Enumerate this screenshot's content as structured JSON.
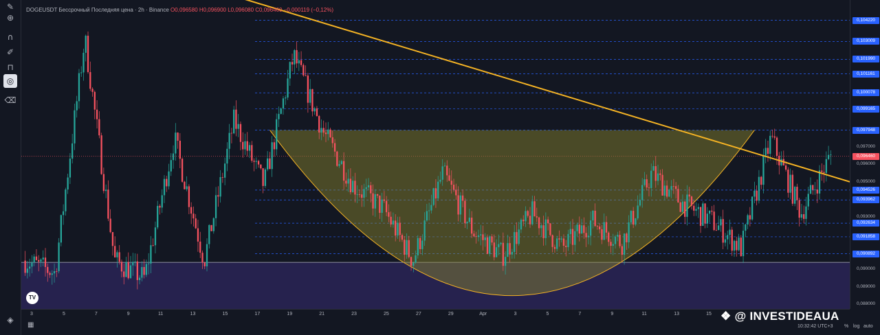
{
  "legend": {
    "title": "DOGEUSDT Бессрочный Последняя цена · 2h · Binance",
    "ohlc": "O0,096580 H0,096900 L0,096080 C0,096460 −0,000119 (−0,12%)"
  },
  "toolbar": {
    "icons": [
      "pencil-icon",
      "zoom-icon",
      "magnet-icon",
      "brush-lock-icon",
      "lock-icon",
      "hide-drawings-icon",
      "trash-icon",
      "layers-icon"
    ]
  },
  "price_axis": {
    "labels": [
      {
        "text": "0,104220",
        "style": "blue",
        "price": 0.10422
      },
      {
        "text": "0,103009",
        "style": "blue",
        "price": 0.103009
      },
      {
        "text": "0,101990",
        "style": "blue",
        "price": 0.10199
      },
      {
        "text": "0,101161",
        "style": "blue",
        "price": 0.101161
      },
      {
        "text": "0,100078",
        "style": "blue",
        "price": 0.100078
      },
      {
        "text": "0,099165",
        "style": "blue",
        "price": 0.099165
      },
      {
        "text": "0,097948",
        "style": "blue",
        "price": 0.097948
      },
      {
        "text": "0,097000",
        "style": "plain",
        "price": 0.097
      },
      {
        "text": "0,096460",
        "style": "red",
        "price": 0.09646
      },
      {
        "text": "0,096000",
        "style": "plain",
        "price": 0.096
      },
      {
        "text": "0,095000",
        "style": "plain",
        "price": 0.095
      },
      {
        "text": "0,094526",
        "style": "blue",
        "price": 0.094526
      },
      {
        "text": "0,093962",
        "style": "blue",
        "price": 0.093962
      },
      {
        "text": "0,093000",
        "style": "plain",
        "price": 0.093
      },
      {
        "text": "0,092634",
        "style": "blue",
        "price": 0.092634
      },
      {
        "text": "0,091858",
        "style": "blue",
        "price": 0.091858
      },
      {
        "text": "0,090892",
        "style": "blue",
        "price": 0.090892
      },
      {
        "text": "0,090000",
        "style": "plain",
        "price": 0.09
      },
      {
        "text": "0,089000",
        "style": "plain",
        "price": 0.089
      },
      {
        "text": "0,088000",
        "style": "plain",
        "price": 0.088
      }
    ]
  },
  "time_axis": {
    "labels": [
      "3",
      "5",
      "7",
      "9",
      "11",
      "13",
      "15",
      "17",
      "19",
      "21",
      "23",
      "25",
      "27",
      "29",
      "Apr",
      "3",
      "5",
      "7",
      "9",
      "11",
      "13",
      "15"
    ]
  },
  "status": {
    "clock": "10:32:42 UTC+3",
    "percent": "%",
    "log": "log",
    "auto": "auto"
  },
  "watermark": "❖ @ INVESTIDEAUA",
  "tv_logo": "TV",
  "colors": {
    "background": "#131722",
    "up": "#26a69a",
    "down": "#f7525f",
    "trendline": "#f5b324",
    "cup_fill": "#8d8a2f",
    "support_zone": "#2a2456",
    "level_line": "#2962ff"
  },
  "chart_data": {
    "type": "candlestick",
    "symbol": "DOGEUSDT",
    "timeframe": "2h",
    "exchange": "Binance",
    "last_price": 0.09646,
    "ylim": [
      0.08774,
      0.10538
    ],
    "candle_count": 360,
    "anchor_closes": [
      0.0905,
      0.0898,
      0.1032,
      0.0905,
      0.0895,
      0.0975,
      0.0905,
      0.0985,
      0.0948,
      0.1022,
      0.0978,
      0.0948,
      0.0935,
      0.0905,
      0.0955,
      0.0922,
      0.0908,
      0.0932,
      0.0912,
      0.0928,
      0.0915,
      0.0955,
      0.0938,
      0.0928,
      0.0912,
      0.0975,
      0.0932,
      0.0965
    ],
    "key_levels": [
      0.10422,
      0.103009,
      0.10199,
      0.101161,
      0.100078,
      0.099165,
      0.097948,
      0.094526,
      0.093962,
      0.092634,
      0.091858,
      0.090892
    ],
    "trendline": {
      "from": 0.1056,
      "to": 0.095
    },
    "support_zone": [
      0.0875,
      0.0904
    ],
    "cup_pattern": {
      "rim": 0.097948,
      "bottom": 0.0885
    }
  }
}
